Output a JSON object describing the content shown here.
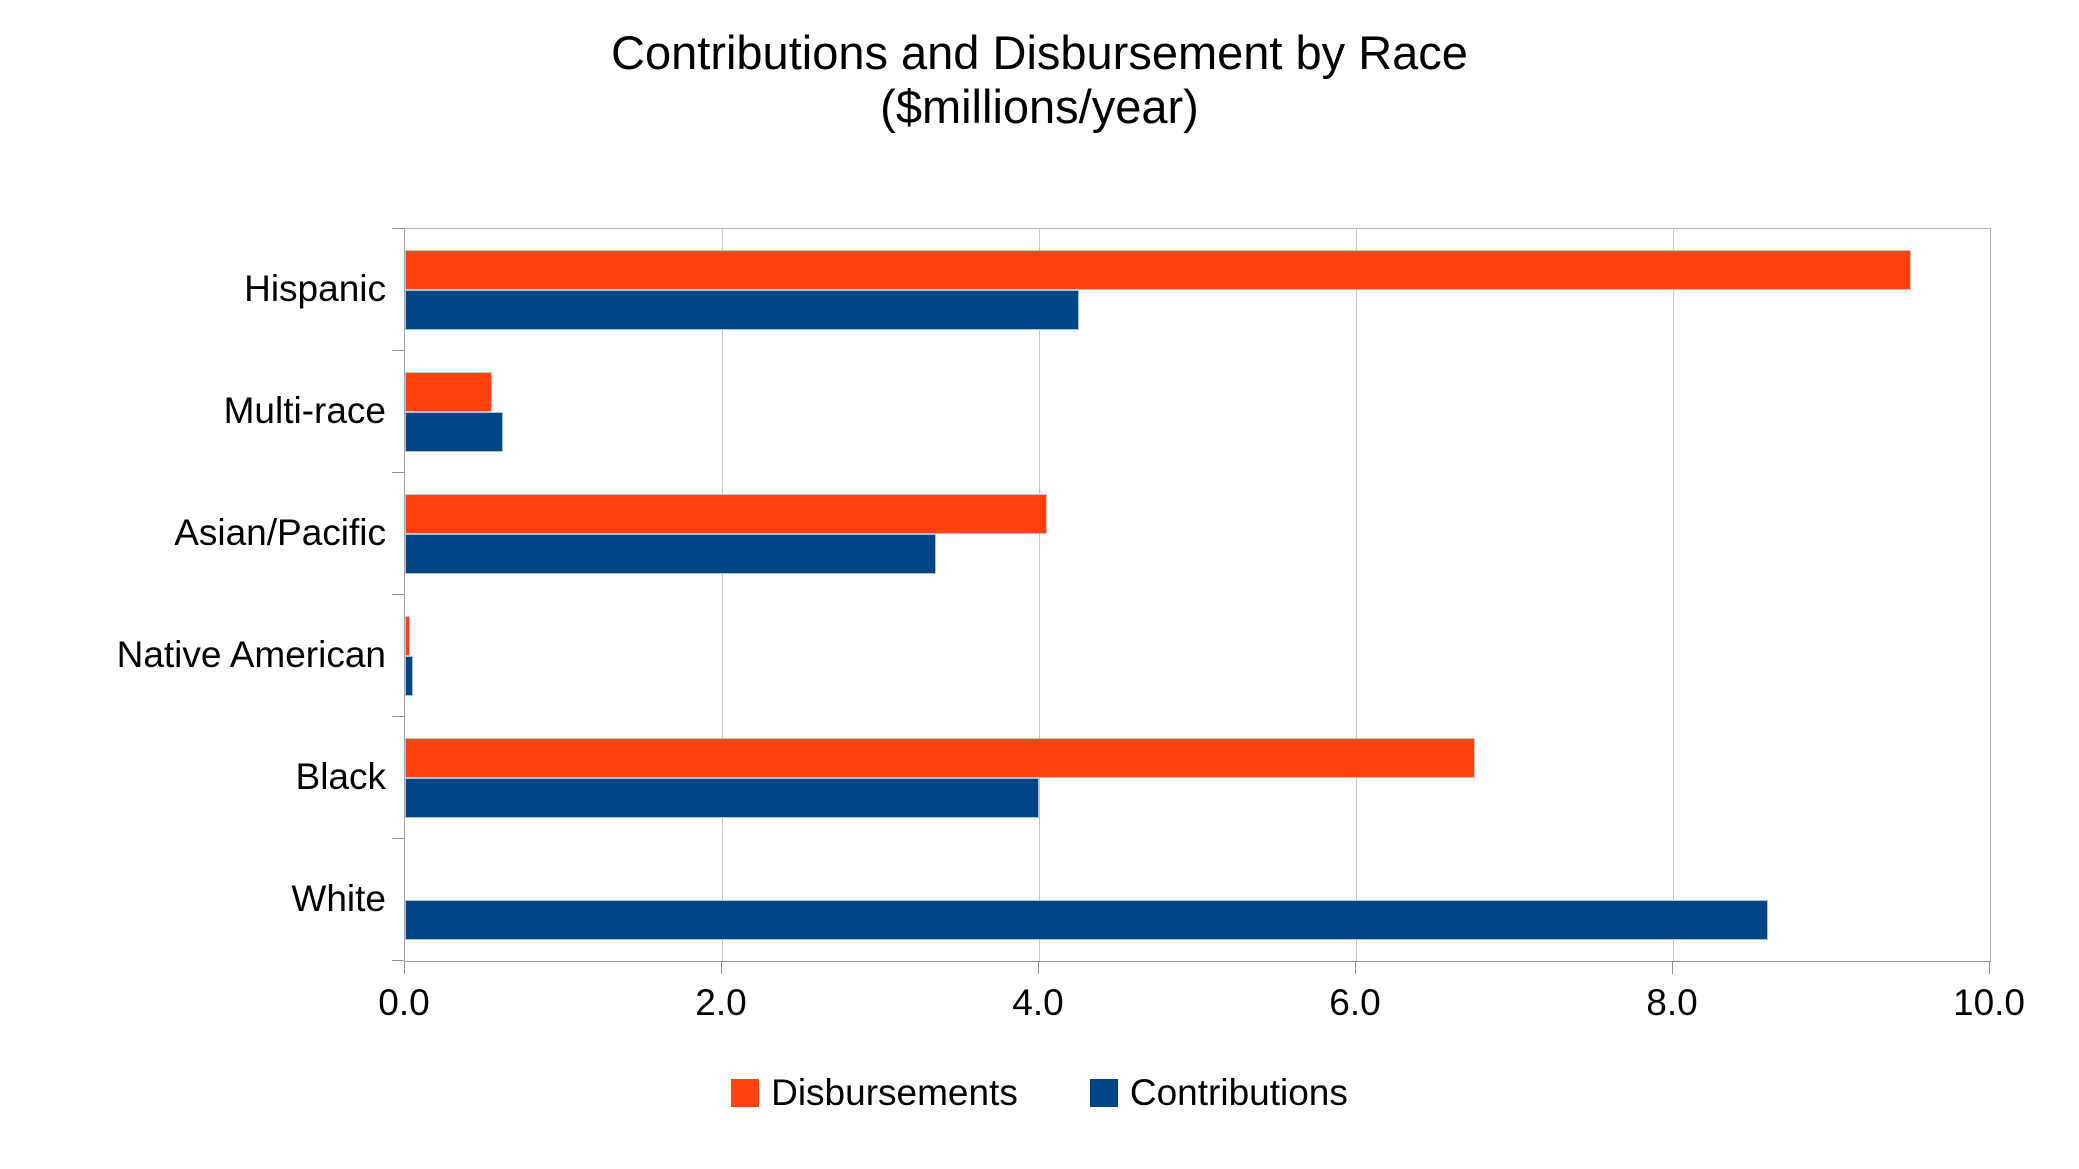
{
  "title": {
    "line1": "Contributions and Disbursement by Race",
    "line2": "($millions/year)"
  },
  "chart_data": {
    "type": "bar",
    "orientation": "horizontal",
    "title": "Contributions and Disbursement by Race ($millions/year)",
    "categories": [
      "Hispanic",
      "Multi-race",
      "Asian/Pacific",
      "Native American",
      "Black",
      "White"
    ],
    "series": [
      {
        "name": "Disbursements",
        "color": "#FF420E",
        "values": [
          9.5,
          0.55,
          4.05,
          0.03,
          6.75,
          0.0
        ]
      },
      {
        "name": "Contributions",
        "color": "#004586",
        "values": [
          4.25,
          0.62,
          3.35,
          0.05,
          4.0,
          8.6
        ]
      }
    ],
    "xlabel": "",
    "ylabel": "",
    "xlim": [
      0.0,
      10.0
    ],
    "xticks": [
      0.0,
      2.0,
      4.0,
      6.0,
      8.0,
      10.0
    ],
    "xtick_labels": [
      "0.0",
      "2.0",
      "4.0",
      "6.0",
      "8.0",
      "10.0"
    ],
    "grid": "vertical",
    "legend_position": "bottom"
  },
  "colors": {
    "plot_border": "#b2b2b2",
    "axis_line": "#8f8f8f",
    "gridline": "#c9c9c9",
    "text": "#000000",
    "background": "#ffffff"
  }
}
